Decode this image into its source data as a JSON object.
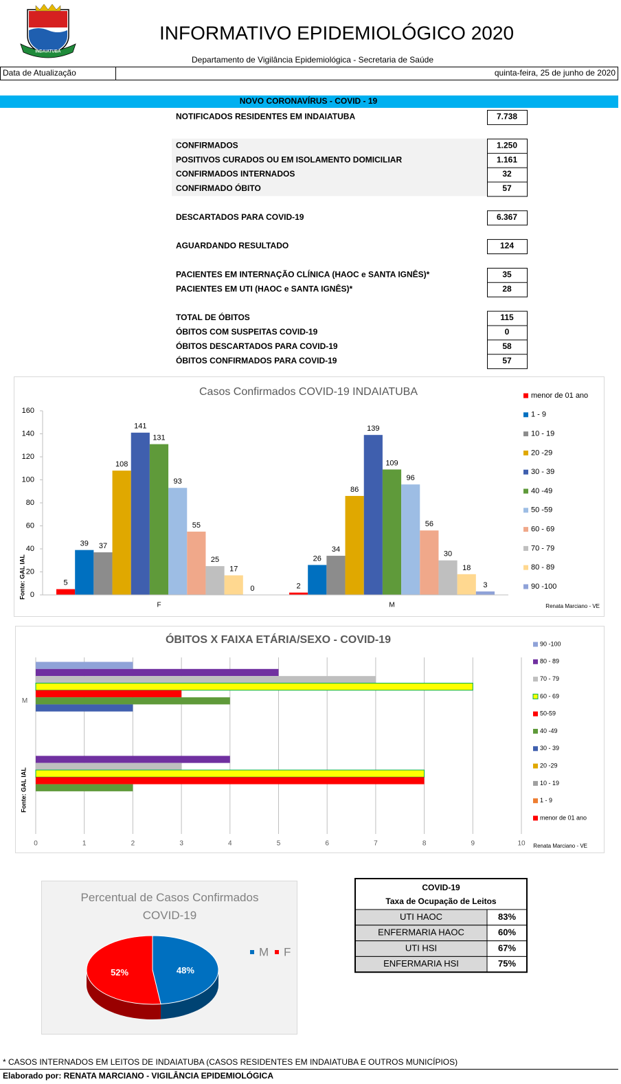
{
  "header": {
    "logo_text": "INDAIATUBA",
    "title": "INFORMATIVO EPIDEMIOLÓGICO 2020",
    "subtitle": "Departamento de Vigilância Epidemiológica - Secretaria de Saúde",
    "update_label": "Data de Atualização",
    "update_date": "quinta-feira, 25 de junho de 2020"
  },
  "section_title": "NOVO CORONAVÍRUS - COVID - 19",
  "stats": [
    [
      {
        "label": "NOTIFICADOS RESIDENTES EM INDAIATUBA",
        "value": "7.738"
      }
    ],
    [
      {
        "label": "CONFIRMADOS",
        "value": "1.250"
      },
      {
        "label": "POSITIVOS CURADOS OU EM ISOLAMENTO DOMICILIAR",
        "value": "1.161"
      },
      {
        "label": "CONFIRMADOS INTERNADOS",
        "value": "32"
      },
      {
        "label": "CONFIRMADO ÓBITO",
        "value": "57"
      }
    ],
    [
      {
        "label": "DESCARTADOS PARA COVID-19",
        "value": "6.367"
      }
    ],
    [
      {
        "label": "AGUARDANDO RESULTADO",
        "value": "124"
      }
    ],
    [
      {
        "label": "PACIENTES EM INTERNAÇÃO CLÍNICA (HAOC e SANTA IGNÊS)*",
        "value": "35"
      },
      {
        "label": "PACIENTES EM UTI (HAOC e SANTA IGNÊS)*",
        "value": "28"
      }
    ],
    [
      {
        "label": "TOTAL DE ÓBITOS",
        "value": "115"
      },
      {
        "label": "ÓBITOS COM SUSPEITAS COVID-19",
        "value": "0"
      },
      {
        "label": "ÓBITOS DESCARTADOS PARA COVID-19",
        "value": "58"
      },
      {
        "label": "ÓBITOS CONFIRMADOS PARA COVID-19",
        "value": "57"
      }
    ]
  ],
  "chart_data": [
    {
      "type": "bar",
      "title": "Casos Confirmados COVID-19 INDAIATUBA",
      "y_label": "Fonte: GAL IAL",
      "note": "Renata Marciano - VE",
      "categories": [
        "F",
        "M"
      ],
      "ylim": [
        0,
        160
      ],
      "yticks": [
        0,
        20,
        40,
        60,
        80,
        100,
        120,
        140,
        160
      ],
      "grid": false,
      "legend": "right",
      "series": [
        {
          "name": "menor de 01 ano",
          "color": "#ff0000",
          "values": [
            5,
            2
          ]
        },
        {
          "name": "1 - 9",
          "color": "#0070c0",
          "values": [
            39,
            26
          ]
        },
        {
          "name": "10 - 19",
          "color": "#8c8c8c",
          "values": [
            37,
            34
          ]
        },
        {
          "name": "20 -29",
          "color": "#e0a800",
          "values": [
            108,
            86
          ]
        },
        {
          "name": "30 - 39",
          "color": "#3f5fae",
          "values": [
            141,
            139
          ]
        },
        {
          "name": "40 -49",
          "color": "#5f9a3a",
          "values": [
            131,
            109
          ]
        },
        {
          "name": "50 -59",
          "color": "#9dbde4",
          "values": [
            93,
            96
          ]
        },
        {
          "name": "60 - 69",
          "color": "#f0a88a",
          "values": [
            55,
            56
          ]
        },
        {
          "name": "70 - 79",
          "color": "#bfbfbf",
          "values": [
            25,
            30
          ]
        },
        {
          "name": "80 - 89",
          "color": "#ffd890",
          "values": [
            17,
            18
          ]
        },
        {
          "name": "90 -100",
          "color": "#8fa2d8",
          "values": [
            0,
            3
          ]
        }
      ]
    },
    {
      "type": "hbar",
      "title": "ÓBITOS X FAIXA ETÁRIA/SEXO - COVID-19",
      "y_label": "Fonte: GAL IAL",
      "note": "Renata Marciano - VE",
      "categories": [
        null,
        "M"
      ],
      "xlim": [
        0,
        10
      ],
      "xticks": [
        0,
        1,
        2,
        3,
        4,
        5,
        6,
        7,
        8,
        9,
        10
      ],
      "grid": true,
      "legend": "right",
      "series": [
        {
          "name": "90 -100",
          "color": "#8fa2d8",
          "values": [
            0,
            2
          ]
        },
        {
          "name": "80 - 89",
          "color": "#7030a0",
          "values": [
            4,
            5
          ]
        },
        {
          "name": "70 - 79",
          "color": "#bfbfbf",
          "values": [
            3,
            7
          ]
        },
        {
          "name": "60 - 69",
          "color": "#ffff00",
          "edgecolor": "#00b050",
          "values": [
            8,
            9
          ]
        },
        {
          "name": "50-59",
          "color": "#ff0000",
          "values": [
            8,
            3
          ]
        },
        {
          "name": "40 -49",
          "color": "#5f9a3a",
          "values": [
            2,
            4
          ]
        },
        {
          "name": "30 - 39",
          "color": "#3f5fae",
          "values": [
            0,
            2
          ]
        },
        {
          "name": "20 -29",
          "color": "#e0a800",
          "values": [
            0,
            0
          ]
        },
        {
          "name": "10 - 19",
          "color": "#a0a0a0",
          "values": [
            0,
            0
          ]
        },
        {
          "name": "1 - 9",
          "color": "#ed7d31",
          "values": [
            0,
            0
          ]
        },
        {
          "name": "menor de 01 ano",
          "color": "#ff0000",
          "values": [
            0,
            0
          ]
        }
      ]
    },
    {
      "type": "pie",
      "title": "Percentual de Casos Confirmados COVID-19",
      "categories": [
        "M",
        "F"
      ],
      "values": [
        48,
        52
      ],
      "value_labels": [
        "48%",
        "52%"
      ],
      "colors": [
        "#0070c0",
        "#ff0000"
      ],
      "legend": "right"
    }
  ],
  "occupancy": {
    "title": "COVID-19",
    "subtitle": "Taxa de Ocupação de Leitos",
    "rows": [
      [
        "UTI HAOC",
        "83%"
      ],
      [
        "ENFERMARIA HAOC",
        "60%"
      ],
      [
        "UTI HSI",
        "67%"
      ],
      [
        "ENFERMARIA HSI",
        "75%"
      ]
    ]
  },
  "footer": {
    "note": "* CASOS INTERNADOS EM LEITOS DE INDAIATUBA (CASOS RESIDENTES EM INDAIATUBA E OUTROS MUNICÍPIOS)",
    "author": "Elaborado por: RENATA MARCIANO - VIGILÂNCIA EPIDEMIOLÓGICA"
  }
}
